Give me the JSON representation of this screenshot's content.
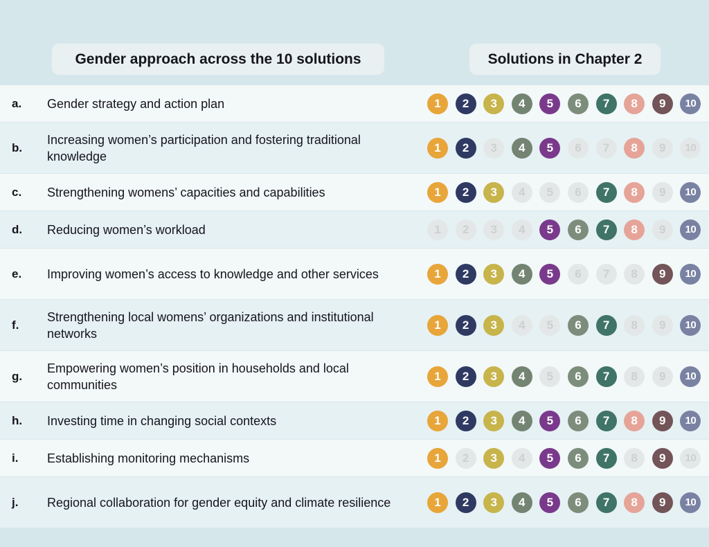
{
  "header": {
    "left_title": "Gender approach across the 10 solutions",
    "right_title": "Solutions in Chapter 2"
  },
  "solution_colors": {
    "1": "#e8a53a",
    "2": "#2f3a63",
    "3": "#c7b44b",
    "4": "#748473",
    "5": "#7a3a8c",
    "6": "#7d8d7b",
    "7": "#3f7467",
    "8": "#e6a498",
    "9": "#735458",
    "10": "#7a82a3"
  },
  "inactive_color": "#e4e7e8",
  "solution_numbers": [
    "1",
    "2",
    "3",
    "4",
    "5",
    "6",
    "7",
    "8",
    "9",
    "10"
  ],
  "rows": [
    {
      "letter": "a.",
      "text": "Gender strategy and action plan",
      "active": [
        1,
        2,
        3,
        4,
        5,
        6,
        7,
        8,
        9,
        10
      ]
    },
    {
      "letter": "b.",
      "text": "Increasing women’s participation and fostering traditional knowledge",
      "active": [
        1,
        2,
        4,
        5,
        8
      ]
    },
    {
      "letter": "c.",
      "text": "Strengthening womens’ capacities and capabilities",
      "active": [
        1,
        2,
        3,
        7,
        8,
        10
      ]
    },
    {
      "letter": "d.",
      "text": "Reducing women’s workload",
      "active": [
        5,
        6,
        7,
        8,
        10
      ]
    },
    {
      "letter": "e.",
      "text": "Improving women’s access to knowledge and other services",
      "active": [
        1,
        2,
        3,
        4,
        5,
        9,
        10
      ]
    },
    {
      "letter": "f.",
      "text": "Strengthening local womens’ organizations and institutional networks",
      "active": [
        1,
        2,
        3,
        6,
        7,
        10
      ]
    },
    {
      "letter": "g.",
      "text": "Empowering women’s position in households and local communities",
      "active": [
        1,
        2,
        3,
        4,
        6,
        7,
        10
      ]
    },
    {
      "letter": "h.",
      "text": "Investing time in changing social contexts",
      "active": [
        1,
        2,
        3,
        4,
        5,
        6,
        7,
        8,
        9,
        10
      ]
    },
    {
      "letter": "i.",
      "text": "Establishing monitoring mechanisms",
      "active": [
        1,
        3,
        5,
        6,
        7,
        9
      ]
    },
    {
      "letter": "j.",
      "text": "Regional collaboration for gender equity and climate resilience",
      "active": [
        1,
        2,
        3,
        4,
        5,
        6,
        7,
        8,
        9,
        10
      ]
    }
  ]
}
